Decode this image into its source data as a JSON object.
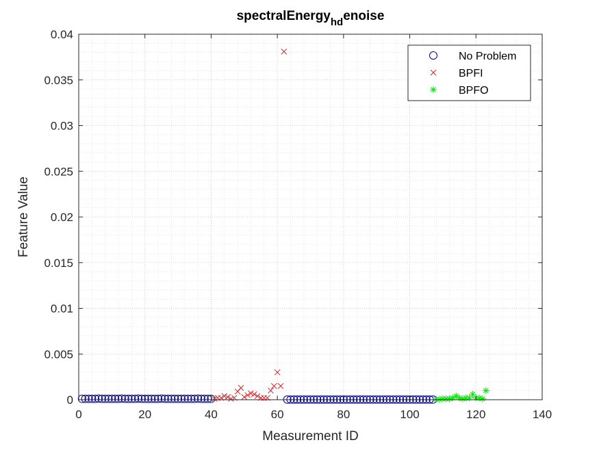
{
  "chart_data": {
    "type": "scatter",
    "title": {
      "main": "spectralEnergy",
      "sub": "hd",
      "tail": "enoise"
    },
    "xlabel": "Measurement ID",
    "ylabel": "Feature Value",
    "xlim": [
      0,
      140
    ],
    "ylim": [
      0,
      0.04
    ],
    "xticks": [
      0,
      20,
      40,
      60,
      80,
      100,
      120,
      140
    ],
    "xtick_labels": [
      "0",
      "20",
      "40",
      "60",
      "80",
      "100",
      "120",
      "140"
    ],
    "yticks": [
      0,
      0.005,
      0.01,
      0.015,
      0.02,
      0.025,
      0.03,
      0.035,
      0.04
    ],
    "ytick_labels": [
      "0",
      "0.005",
      "0.01",
      "0.015",
      "0.02",
      "0.025",
      "0.03",
      "0.035",
      "0.04"
    ],
    "grid": true,
    "minor_grid": true,
    "legend_position": "top-right",
    "series": [
      {
        "name": "No Problem",
        "marker": "circle",
        "color": "#00008b",
        "x": [
          1,
          2,
          3,
          4,
          5,
          6,
          7,
          8,
          9,
          10,
          11,
          12,
          13,
          14,
          15,
          16,
          17,
          18,
          19,
          20,
          21,
          22,
          23,
          24,
          25,
          26,
          27,
          28,
          29,
          30,
          31,
          32,
          33,
          34,
          35,
          36,
          37,
          38,
          39,
          40,
          63,
          64,
          65,
          66,
          67,
          68,
          69,
          70,
          71,
          72,
          73,
          74,
          75,
          76,
          77,
          78,
          79,
          80,
          81,
          82,
          83,
          84,
          85,
          86,
          87,
          88,
          89,
          90,
          91,
          92,
          93,
          94,
          95,
          96,
          97,
          98,
          99,
          100,
          101,
          102,
          103,
          104,
          105,
          106,
          107
        ],
        "y": [
          0.0001,
          0.0001,
          0.0001,
          0.0001,
          0.0001,
          0.00012,
          0.0001,
          0.0001,
          0.0001,
          0.0001,
          0.0001,
          0.0001,
          0.00012,
          0.0001,
          0.0001,
          0.0001,
          0.0001,
          0.00012,
          0.0001,
          0.0001,
          0.0001,
          0.0001,
          0.0001,
          0.0001,
          0.00012,
          0.0001,
          0.0001,
          0.0001,
          0.0001,
          0.0001,
          0.0001,
          0.0001,
          0.0001,
          0.0001,
          0.0001,
          0.00012,
          0.0001,
          0.0001,
          0.0001,
          0.0001,
          2e-05,
          2e-05,
          2e-05,
          2e-05,
          2e-05,
          2e-05,
          2e-05,
          2e-05,
          2e-05,
          2e-05,
          2e-05,
          2e-05,
          2e-05,
          2e-05,
          2e-05,
          2e-05,
          2e-05,
          2e-05,
          2e-05,
          2e-05,
          2e-05,
          2e-05,
          2e-05,
          2e-05,
          2e-05,
          2e-05,
          2e-05,
          2e-05,
          2e-05,
          2e-05,
          2e-05,
          2e-05,
          2e-05,
          2e-05,
          2e-05,
          2e-05,
          2e-05,
          2e-05,
          2e-05,
          2e-05,
          2e-05,
          2e-05,
          2e-05,
          2e-05,
          2e-05
        ]
      },
      {
        "name": "BPFI",
        "marker": "x",
        "color": "#d62728",
        "x": [
          41,
          42,
          43,
          44,
          45,
          46,
          47,
          48,
          49,
          50,
          51,
          52,
          53,
          54,
          55,
          56,
          57,
          58,
          59,
          60,
          61,
          62
        ],
        "y": [
          0.0001,
          0.0002,
          0.0002,
          0.0004,
          0.0003,
          0.0001,
          0.0002,
          0.0009,
          0.0013,
          0.0003,
          0.0005,
          0.0007,
          0.0006,
          0.0004,
          0.0002,
          0.0002,
          0.0002,
          0.001,
          0.0015,
          0.003,
          0.0015,
          0.0381
        ]
      },
      {
        "name": "BPFO",
        "marker": "asterisk",
        "color": "#00e600",
        "x": [
          108,
          109,
          110,
          111,
          112,
          113,
          114,
          115,
          116,
          117,
          118,
          119,
          120,
          121,
          122,
          123
        ],
        "y": [
          5e-05,
          5e-05,
          0.0001,
          0.0001,
          0.0001,
          0.0002,
          0.0004,
          0.0002,
          0.0001,
          0.0002,
          0.0002,
          0.0006,
          0.0002,
          0.0002,
          0.0001,
          0.001
        ]
      }
    ]
  }
}
